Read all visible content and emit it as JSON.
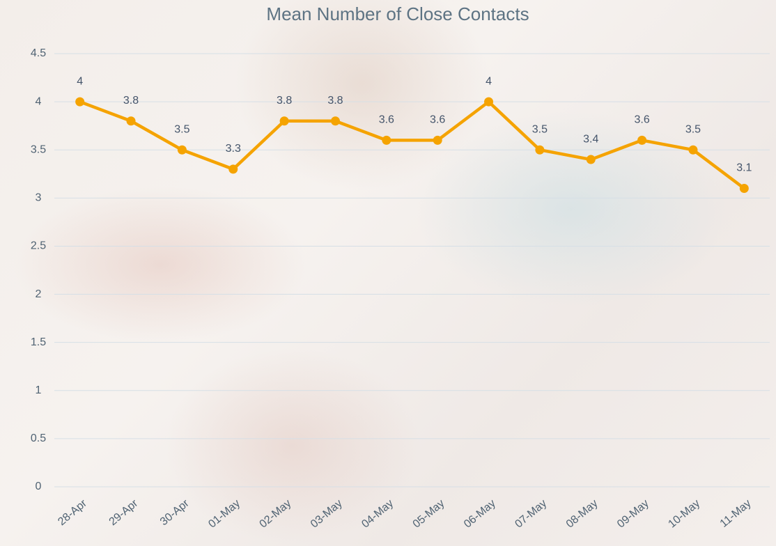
{
  "chart_data": {
    "type": "line",
    "title": "Mean Number of Close Contacts",
    "categories": [
      "28-Apr",
      "29-Apr",
      "30-Apr",
      "01-May",
      "02-May",
      "03-May",
      "04-May",
      "05-May",
      "06-May",
      "07-May",
      "08-May",
      "09-May",
      "10-May",
      "11-May"
    ],
    "values": [
      4,
      3.8,
      3.5,
      3.3,
      3.8,
      3.8,
      3.6,
      3.6,
      4,
      3.5,
      3.4,
      3.6,
      3.5,
      3.1
    ],
    "color": "#f5a300",
    "ylim": [
      0,
      4.5
    ],
    "yticks": [
      0,
      0.5,
      1,
      1.5,
      2,
      2.5,
      3,
      3.5,
      4,
      4.5
    ],
    "grid": true
  }
}
